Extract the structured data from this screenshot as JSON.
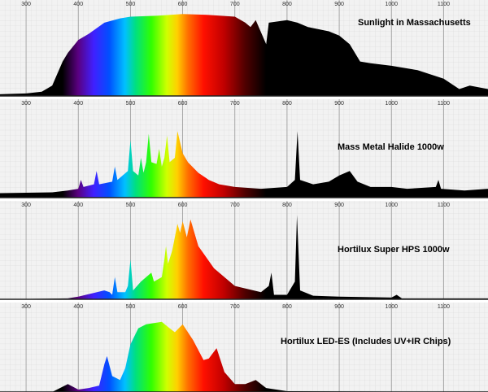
{
  "chart_data": [
    {
      "type": "area",
      "title": "Sunlight in Massachusetts",
      "x": [
        250,
        300,
        330,
        350,
        370,
        380,
        400,
        420,
        450,
        480,
        500,
        550,
        600,
        650,
        700,
        720,
        730,
        740,
        760,
        765,
        800,
        820,
        840,
        880,
        900,
        920,
        940,
        960,
        1000,
        1050,
        1100,
        1130,
        1150,
        1185
      ],
      "values": [
        2,
        3,
        5,
        12,
        40,
        50,
        65,
        72,
        85,
        90,
        92,
        93,
        95,
        94,
        92,
        85,
        80,
        88,
        60,
        85,
        88,
        85,
        80,
        75,
        70,
        60,
        40,
        38,
        35,
        30,
        20,
        8,
        12,
        8
      ],
      "xlim": [
        250,
        1185
      ],
      "xticks": [
        300,
        400,
        500,
        600,
        700,
        800,
        900,
        1000,
        1100
      ],
      "grid": true
    },
    {
      "type": "area",
      "title": "Mass Metal Halide 1000w",
      "x": [
        250,
        350,
        380,
        400,
        405,
        410,
        430,
        435,
        440,
        465,
        470,
        475,
        495,
        500,
        505,
        515,
        520,
        525,
        530,
        535,
        540,
        550,
        555,
        560,
        565,
        570,
        575,
        585,
        590,
        600,
        610,
        630,
        650,
        670,
        700,
        750,
        800,
        815,
        820,
        825,
        850,
        880,
        900,
        920,
        935,
        960,
        1000,
        1030,
        1085,
        1090,
        1095,
        1140,
        1185
      ],
      "values": [
        5,
        6,
        8,
        10,
        20,
        12,
        15,
        30,
        15,
        18,
        35,
        20,
        30,
        65,
        30,
        25,
        45,
        28,
        40,
        72,
        40,
        38,
        55,
        35,
        45,
        70,
        40,
        45,
        75,
        50,
        40,
        28,
        20,
        15,
        12,
        10,
        12,
        20,
        75,
        20,
        15,
        18,
        25,
        30,
        18,
        12,
        12,
        10,
        12,
        20,
        10,
        8,
        10
      ],
      "xlim": [
        250,
        1185
      ],
      "xticks": [
        300,
        400,
        500,
        600,
        700,
        800,
        900,
        1000,
        1100
      ],
      "grid": true
    },
    {
      "type": "area",
      "title": "Hortilux Super HPS 1000w",
      "x": [
        250,
        380,
        400,
        450,
        460,
        465,
        470,
        475,
        490,
        495,
        500,
        505,
        520,
        540,
        545,
        560,
        565,
        568,
        572,
        580,
        590,
        595,
        600,
        608,
        615,
        630,
        660,
        700,
        750,
        765,
        770,
        775,
        800,
        815,
        819,
        825,
        850,
        900,
        1000,
        1010,
        1020,
        1185
      ],
      "values": [
        0,
        1,
        3,
        10,
        8,
        5,
        25,
        8,
        8,
        15,
        45,
        10,
        20,
        30,
        20,
        25,
        45,
        60,
        40,
        55,
        85,
        75,
        88,
        70,
        90,
        60,
        35,
        15,
        8,
        15,
        30,
        5,
        5,
        20,
        95,
        10,
        4,
        3,
        2,
        5,
        1,
        1
      ],
      "xlim": [
        250,
        1185
      ],
      "xticks": [
        300,
        400,
        500,
        600,
        700,
        800,
        900,
        1000,
        1100
      ],
      "grid": true
    },
    {
      "type": "area",
      "title": "Hortilux LED-ES (Includes UV+IR Chips)",
      "x": [
        250,
        350,
        380,
        400,
        420,
        440,
        450,
        455,
        465,
        480,
        490,
        500,
        515,
        530,
        560,
        575,
        585,
        600,
        620,
        640,
        650,
        665,
        680,
        700,
        720,
        740,
        760,
        800,
        1185
      ],
      "values": [
        0,
        0,
        10,
        3,
        5,
        8,
        35,
        45,
        20,
        15,
        30,
        60,
        80,
        85,
        88,
        80,
        75,
        85,
        65,
        40,
        42,
        55,
        25,
        10,
        10,
        15,
        5,
        1,
        0
      ],
      "xlim": [
        250,
        1185
      ],
      "xticks": [
        300,
        400,
        500,
        600,
        700,
        800,
        900,
        1000,
        1100
      ],
      "grid": true
    }
  ]
}
